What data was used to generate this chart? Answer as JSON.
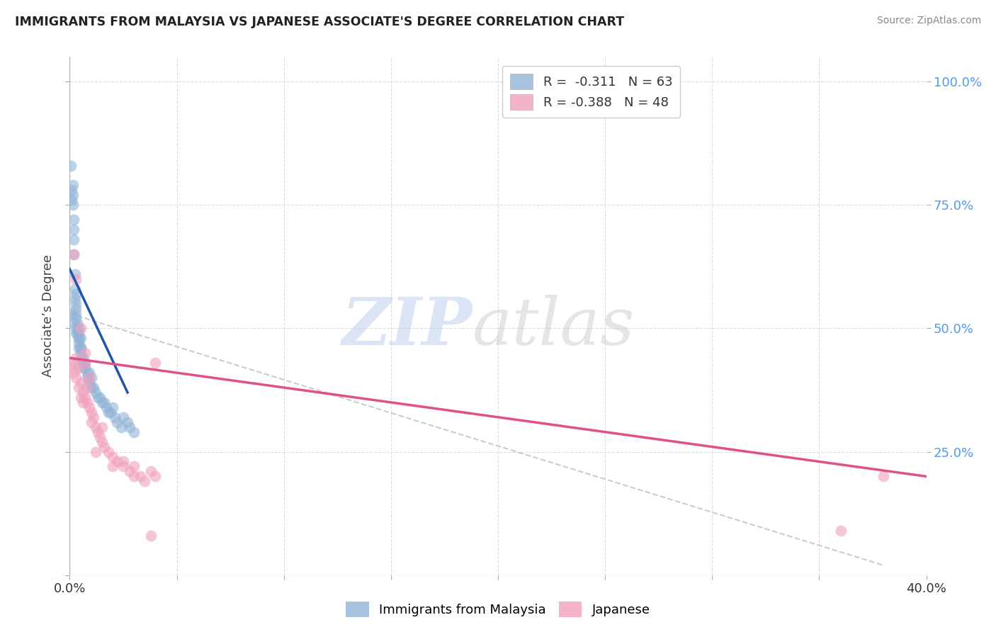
{
  "title": "IMMIGRANTS FROM MALAYSIA VS JAPANESE ASSOCIATE'S DEGREE CORRELATION CHART",
  "source": "Source: ZipAtlas.com",
  "ylabel": "Associate’s Degree",
  "legend_r1": "R =  -0.311   N = 63",
  "legend_r2": "R = -0.388   N = 48",
  "blue_color": "#92b4d8",
  "pink_color": "#f0a0bc",
  "trendline_blue": "#2255aa",
  "trendline_pink": "#e0508a",
  "trendline_gray": "#cccccc",
  "watermark_zip": "ZIP",
  "watermark_atlas": "atlas",
  "blue_scatter_x": [
    0.0005,
    0.001,
    0.001,
    0.0015,
    0.0015,
    0.0015,
    0.002,
    0.002,
    0.002,
    0.002,
    0.0025,
    0.0025,
    0.0025,
    0.003,
    0.003,
    0.003,
    0.003,
    0.003,
    0.003,
    0.0035,
    0.0035,
    0.004,
    0.004,
    0.004,
    0.004,
    0.004,
    0.005,
    0.005,
    0.005,
    0.005,
    0.006,
    0.006,
    0.006,
    0.007,
    0.007,
    0.008,
    0.008,
    0.009,
    0.009,
    0.01,
    0.01,
    0.011,
    0.012,
    0.013,
    0.014,
    0.015,
    0.016,
    0.017,
    0.018,
    0.019,
    0.02,
    0.021,
    0.022,
    0.024,
    0.025,
    0.027,
    0.028,
    0.03,
    0.001,
    0.002,
    0.003,
    0.004,
    0.005
  ],
  "blue_scatter_y": [
    0.83,
    0.78,
    0.76,
    0.77,
    0.79,
    0.75,
    0.72,
    0.7,
    0.68,
    0.65,
    0.61,
    0.58,
    0.56,
    0.57,
    0.55,
    0.53,
    0.52,
    0.54,
    0.5,
    0.51,
    0.49,
    0.5,
    0.48,
    0.46,
    0.49,
    0.47,
    0.48,
    0.46,
    0.44,
    0.45,
    0.43,
    0.44,
    0.42,
    0.42,
    0.43,
    0.41,
    0.4,
    0.39,
    0.41,
    0.4,
    0.38,
    0.38,
    0.37,
    0.36,
    0.36,
    0.35,
    0.35,
    0.34,
    0.33,
    0.33,
    0.34,
    0.32,
    0.31,
    0.3,
    0.32,
    0.31,
    0.3,
    0.29,
    0.53,
    0.51,
    0.49,
    0.48,
    0.46
  ],
  "pink_scatter_x": [
    0.001,
    0.002,
    0.002,
    0.003,
    0.003,
    0.004,
    0.004,
    0.005,
    0.005,
    0.006,
    0.006,
    0.007,
    0.007,
    0.008,
    0.008,
    0.009,
    0.01,
    0.01,
    0.011,
    0.012,
    0.013,
    0.014,
    0.015,
    0.016,
    0.018,
    0.02,
    0.022,
    0.025,
    0.028,
    0.03,
    0.033,
    0.035,
    0.038,
    0.04,
    0.002,
    0.003,
    0.005,
    0.007,
    0.009,
    0.012,
    0.015,
    0.02,
    0.025,
    0.03,
    0.038,
    0.04,
    0.38,
    0.36
  ],
  "pink_scatter_y": [
    0.42,
    0.43,
    0.41,
    0.44,
    0.4,
    0.42,
    0.38,
    0.36,
    0.39,
    0.37,
    0.35,
    0.36,
    0.43,
    0.38,
    0.35,
    0.34,
    0.33,
    0.31,
    0.32,
    0.3,
    0.29,
    0.28,
    0.27,
    0.26,
    0.25,
    0.24,
    0.23,
    0.22,
    0.21,
    0.22,
    0.2,
    0.19,
    0.21,
    0.2,
    0.65,
    0.6,
    0.5,
    0.45,
    0.4,
    0.25,
    0.3,
    0.22,
    0.23,
    0.2,
    0.08,
    0.43,
    0.2,
    0.09
  ],
  "xlim": [
    0.0,
    0.4
  ],
  "ylim": [
    0.0,
    1.05
  ],
  "xtick_positions": [
    0.0,
    0.05,
    0.1,
    0.15,
    0.2,
    0.25,
    0.3,
    0.35,
    0.4
  ],
  "ytick_positions": [
    0.0,
    0.25,
    0.5,
    0.75,
    1.0
  ],
  "right_ytick_labels": [
    "100.0%",
    "75.0%",
    "50.0%",
    "25.0%"
  ],
  "right_ytick_vals": [
    1.0,
    0.75,
    0.5,
    0.25
  ]
}
